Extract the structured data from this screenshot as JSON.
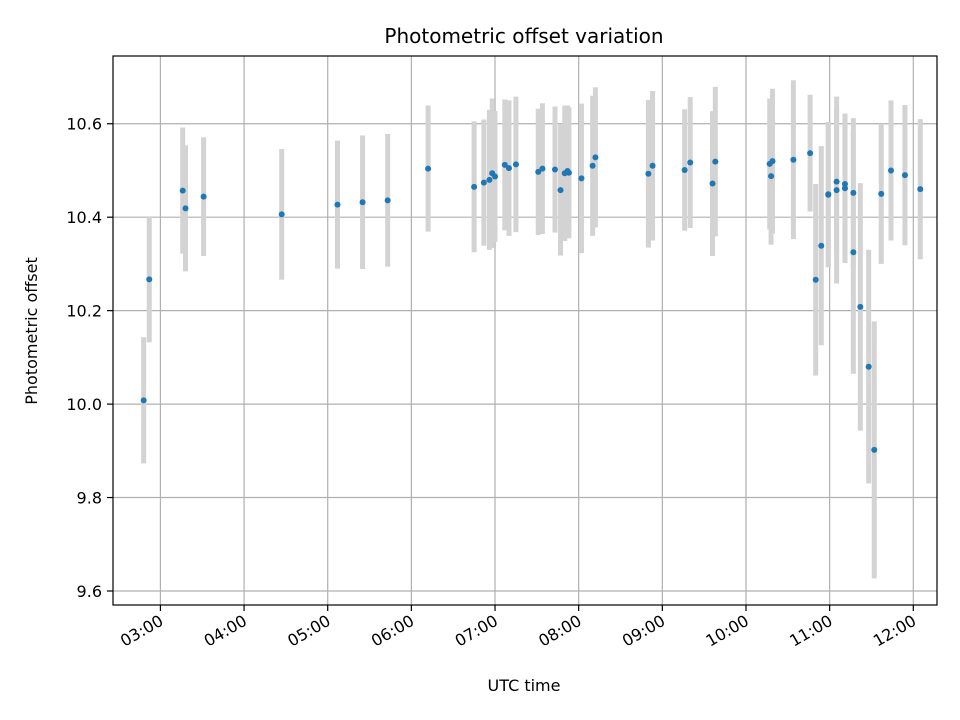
{
  "chart_data": {
    "type": "scatter",
    "title": "Photometric offset variation",
    "xlabel": "UTC time",
    "ylabel": "Photometric offset",
    "grid": true,
    "legend": "none",
    "x_ticks": [
      "03:00",
      "04:00",
      "05:00",
      "06:00",
      "07:00",
      "08:00",
      "09:00",
      "10:00",
      "11:00",
      "12:00"
    ],
    "y_ticks": [
      "9.6",
      "9.8",
      "10.0",
      "10.2",
      "10.4",
      "10.6"
    ],
    "xlim": [
      "02:26",
      "12:17"
    ],
    "ylim": [
      9.57,
      10.745
    ],
    "colors": {
      "point": "#1f77b4",
      "errorbar": "#d3d3d3",
      "grid": "#b0b0b0"
    },
    "series": [
      {
        "x": [
          "02:48",
          "02:52",
          "03:16",
          "03:18",
          "03:31",
          "04:27",
          "05:07",
          "05:25",
          "05:43",
          "06:12",
          "06:45",
          "06:52",
          "06:56",
          "06:58",
          "07:00",
          "07:07",
          "07:10",
          "07:15",
          "07:31",
          "07:34",
          "07:43",
          "07:47",
          "07:50",
          "07:52",
          "07:53",
          "08:02",
          "08:10",
          "08:12",
          "08:50",
          "08:53",
          "09:16",
          "09:20",
          "09:36",
          "09:38",
          "10:17",
          "10:18",
          "10:19",
          "10:34",
          "10:46",
          "10:50",
          "10:54",
          "10:59",
          "10:59",
          "11:05",
          "11:05",
          "11:11",
          "11:11",
          "11:17",
          "11:17",
          "11:22",
          "11:28",
          "11:32",
          "11:37",
          "11:44",
          "11:54",
          "12:05"
        ],
        "y": [
          10.008,
          10.267,
          10.457,
          10.419,
          10.444,
          10.406,
          10.427,
          10.432,
          10.436,
          10.504,
          10.465,
          10.474,
          10.48,
          10.494,
          10.487,
          10.512,
          10.505,
          10.513,
          10.497,
          10.504,
          10.502,
          10.458,
          10.494,
          10.499,
          10.495,
          10.483,
          10.51,
          10.528,
          10.493,
          10.51,
          10.501,
          10.517,
          10.472,
          10.519,
          10.514,
          10.488,
          10.52,
          10.523,
          10.537,
          10.266,
          10.339,
          10.448,
          10.449,
          10.458,
          10.476,
          10.462,
          10.471,
          10.452,
          10.325,
          10.208,
          10.08,
          9.902,
          10.45,
          10.5,
          10.49,
          10.46
        ],
        "err": [
          0.135,
          0.135,
          0.135,
          0.135,
          0.127,
          0.14,
          0.137,
          0.143,
          0.142,
          0.135,
          0.14,
          0.135,
          0.15,
          0.16,
          0.14,
          0.14,
          0.145,
          0.145,
          0.135,
          0.14,
          0.135,
          0.14,
          0.145,
          0.14,
          0.14,
          0.16,
          0.15,
          0.15,
          0.158,
          0.16,
          0.13,
          0.14,
          0.155,
          0.16,
          0.14,
          0.147,
          0.155,
          0.17,
          0.125,
          0.205,
          0.213,
          0.155,
          0.155,
          0.2,
          0.155,
          0.16,
          0.15,
          0.16,
          0.26,
          0.265,
          0.25,
          0.275,
          0.15,
          0.15,
          0.15,
          0.15
        ]
      }
    ]
  }
}
